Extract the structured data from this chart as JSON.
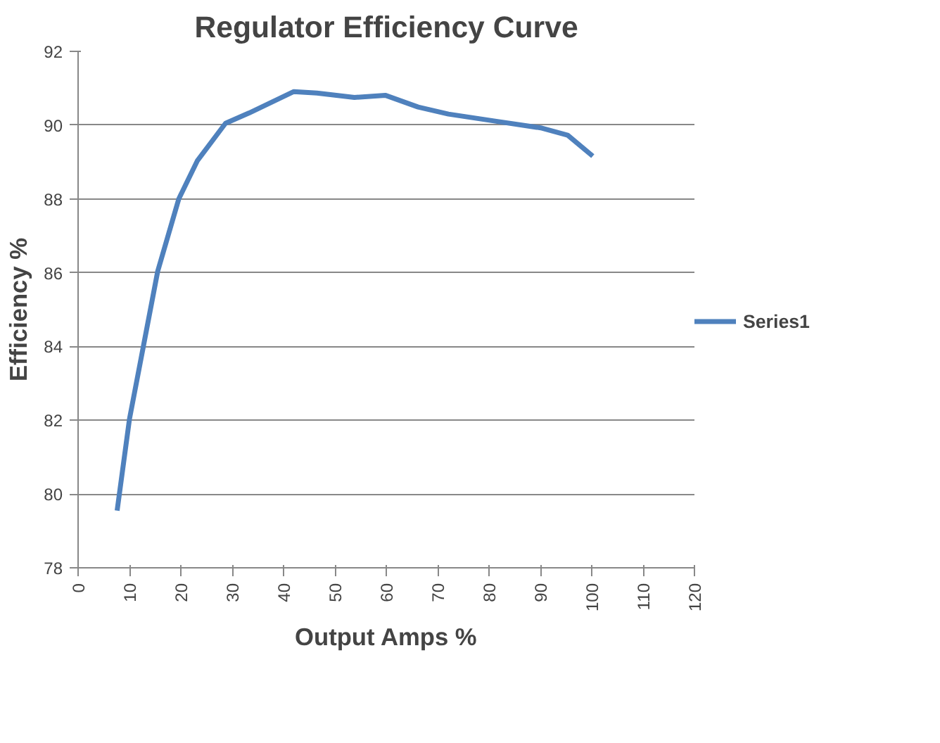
{
  "chart_data": {
    "type": "line",
    "title": "Regulator Efficiency Curve",
    "xlabel": "Output Amps %",
    "ylabel": "Efficiency %",
    "x": [
      7.6,
      10,
      12.8,
      15.5,
      19.6,
      23.2,
      28.7,
      33.3,
      42,
      46.5,
      53.8,
      59.8,
      66.2,
      72.1,
      81.2,
      90.3,
      95.3,
      100.2
    ],
    "series": [
      {
        "name": "Series1",
        "color": "#4f81bd",
        "values": [
          79.55,
          82.03,
          84.07,
          86.04,
          88.0,
          89.03,
          90.05,
          90.33,
          90.91,
          90.87,
          90.75,
          90.81,
          90.49,
          90.3,
          90.11,
          89.92,
          89.73,
          89.16
        ]
      }
    ],
    "xlim": [
      0,
      120
    ],
    "xticks": [
      0,
      10,
      20,
      30,
      40,
      50,
      60,
      70,
      80,
      90,
      100,
      110,
      120
    ],
    "ylim": [
      78,
      92
    ],
    "yticks": [
      78,
      80,
      82,
      84,
      86,
      88,
      90,
      92
    ],
    "grid": "y",
    "legend": "right",
    "marker": "none",
    "line_style": "solid"
  }
}
